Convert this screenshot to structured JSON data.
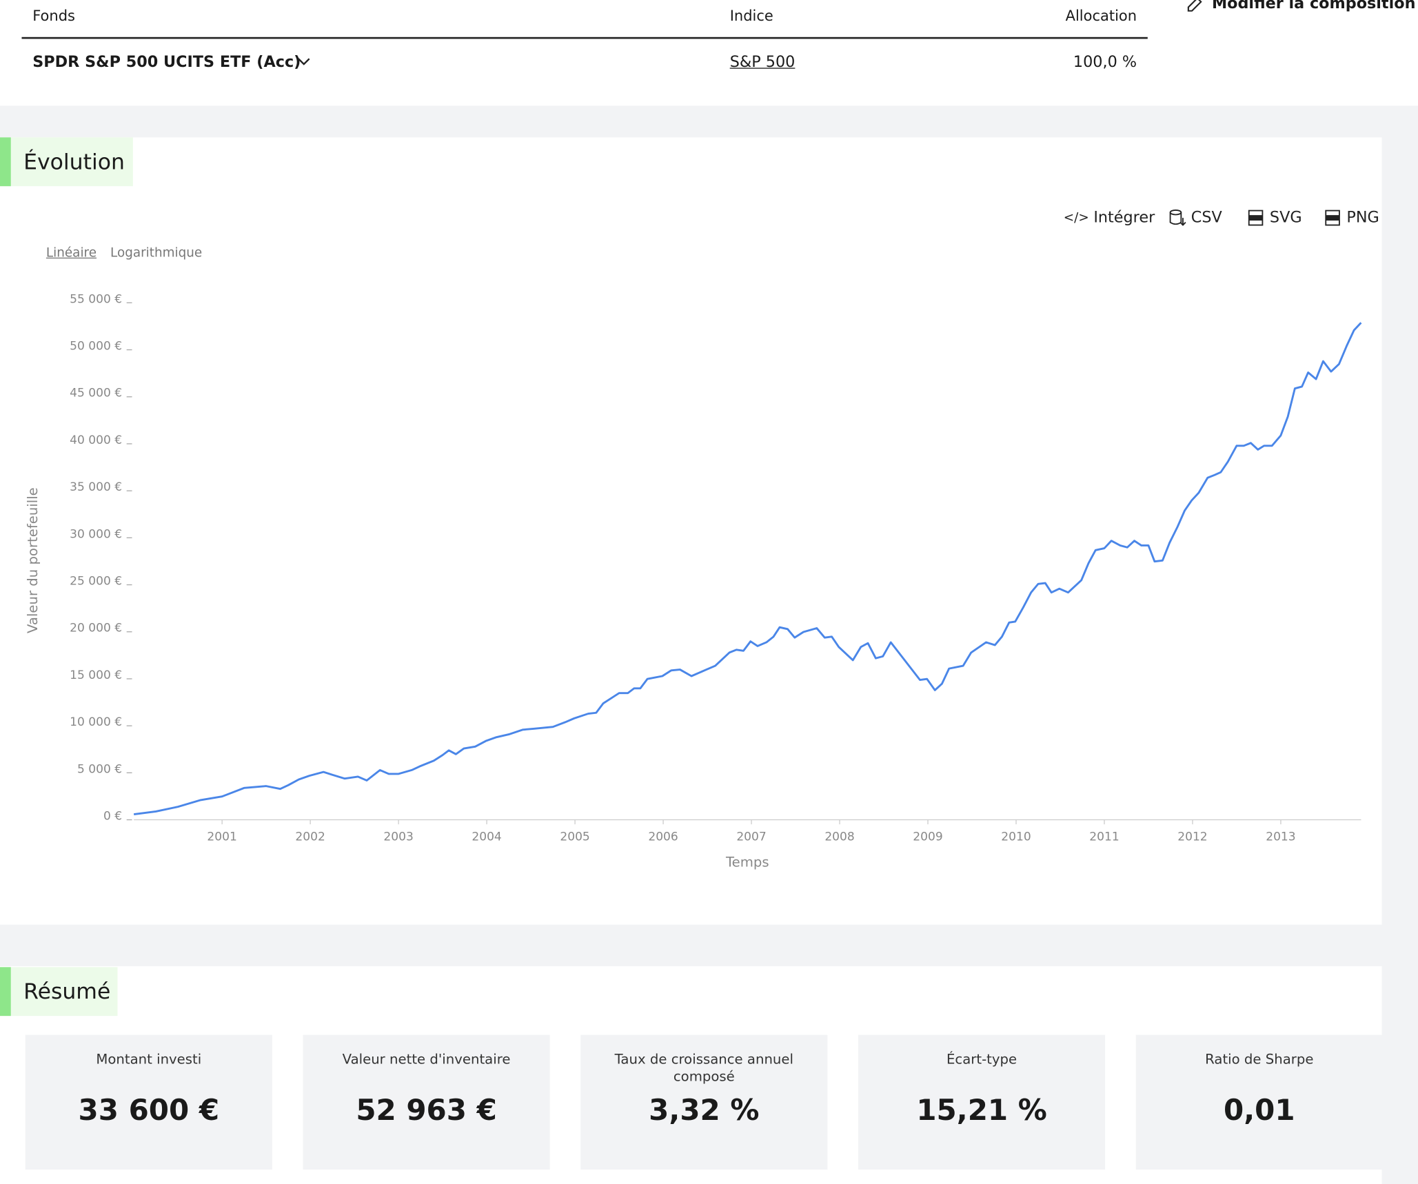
{
  "table": {
    "headers": [
      "Fonds",
      "Indice",
      "Allocation"
    ],
    "rows": [
      [
        "SPDR S&P 500 UCITS ETF (Acc)",
        "S&P 500",
        "100,0 %"
      ]
    ]
  },
  "edit_button": "Modifier la composition",
  "evolution": {
    "title": "Évolution",
    "exports": [
      "Intégrer",
      "CSV",
      "SVG",
      "PNG"
    ],
    "scale_options": [
      "Linéaire",
      "Logarithmique"
    ]
  },
  "chart_data": {
    "type": "line",
    "xlabel": "Temps",
    "ylabel": "Valeur du portefeuille",
    "color": "#4a86e8",
    "log_scale": false,
    "grid": false,
    "x": [
      2000.0,
      2000.25,
      2000.5,
      2000.75,
      2001.0,
      2001.25,
      2001.5,
      2001.66,
      2001.75,
      2001.87,
      2001.99,
      2002.15,
      2002.25,
      2002.39,
      2002.54,
      2002.64,
      2002.79,
      2002.89,
      2003.0,
      2003.15,
      2003.24,
      2003.4,
      2003.5,
      2003.57,
      2003.65,
      2003.74,
      2003.87,
      2003.99,
      2004.11,
      2004.25,
      2004.41,
      2004.53,
      2004.75,
      2004.89,
      2004.99,
      2005.15,
      2005.24,
      2005.32,
      2005.5,
      2005.6,
      2005.67,
      2005.74,
      2005.82,
      2005.99,
      2006.09,
      2006.19,
      2006.32,
      2006.49,
      2006.59,
      2006.75,
      2006.83,
      2006.91,
      2006.99,
      2007.07,
      2007.17,
      2007.25,
      2007.32,
      2007.41,
      2007.49,
      2007.59,
      2007.74,
      2007.83,
      2007.91,
      2007.99,
      2008.15,
      2008.24,
      2008.32,
      2008.41,
      2008.49,
      2008.58,
      2008.91,
      2008.99,
      2009.08,
      2009.16,
      2009.24,
      2009.4,
      2009.49,
      2009.66,
      2009.76,
      2009.84,
      2009.92,
      2009.99,
      2010.08,
      2010.17,
      2010.25,
      2010.33,
      2010.4,
      2010.49,
      2010.59,
      2010.74,
      2010.82,
      2010.9,
      2011.0,
      2011.08,
      2011.18,
      2011.26,
      2011.34,
      2011.42,
      2011.5,
      2011.57,
      2011.66,
      2011.74,
      2011.83,
      2011.91,
      2011.99,
      2012.07,
      2012.17,
      2012.25,
      2012.32,
      2012.4,
      2012.5,
      2012.58,
      2012.66,
      2012.74,
      2012.81,
      2012.9,
      2013.0,
      2013.08,
      2013.16,
      2013.24,
      2013.31,
      2013.4,
      2013.48,
      2013.57,
      2013.66,
      2013.75,
      2013.83,
      2013.91
    ],
    "values": [
      200,
      500,
      1000,
      1700,
      2100,
      3000,
      3200,
      2900,
      3300,
      3900,
      4300,
      4700,
      4400,
      4000,
      4200,
      3800,
      4900,
      4500,
      4500,
      4900,
      5300,
      5900,
      6500,
      7000,
      6600,
      7200,
      7400,
      8000,
      8400,
      8700,
      9200,
      9300,
      9500,
      10000,
      10400,
      10900,
      11000,
      12000,
      13100,
      13100,
      13600,
      13600,
      14600,
      14900,
      15500,
      15600,
      14900,
      15600,
      16000,
      17400,
      17700,
      17600,
      18600,
      18100,
      18500,
      19100,
      20100,
      19900,
      19000,
      19600,
      20000,
      19000,
      19100,
      18000,
      16600,
      18000,
      18400,
      16800,
      17000,
      18500,
      14500,
      14600,
      13400,
      14100,
      15700,
      16000,
      17400,
      18500,
      18200,
      19100,
      20600,
      20700,
      22200,
      23800,
      24700,
      24800,
      23800,
      24200,
      23800,
      25100,
      26900,
      28300,
      28500,
      29300,
      28800,
      28600,
      29300,
      28800,
      28800,
      27100,
      27200,
      29100,
      30800,
      32500,
      33600,
      34400,
      36000,
      36300,
      36600,
      37700,
      39400,
      39400,
      39700,
      39000,
      39400,
      39400,
      40500,
      42500,
      45500,
      45700,
      47200,
      46500,
      48400,
      47300,
      48100,
      50100,
      51700,
      52500
    ],
    "xlim": [
      2000,
      2013.91
    ],
    "xticks": [
      2001,
      2002,
      2003,
      2004,
      2005,
      2006,
      2007,
      2008,
      2009,
      2010,
      2011,
      2012,
      2013
    ],
    "ylim": [
      0,
      55000
    ],
    "yticks": [
      {
        "value": 0,
        "label": "0 €"
      },
      {
        "value": 5000,
        "label": "5 000 €"
      },
      {
        "value": 10000,
        "label": "10 000 €"
      },
      {
        "value": 15000,
        "label": "15 000 €"
      },
      {
        "value": 20000,
        "label": "20 000 €"
      },
      {
        "value": 25000,
        "label": "25 000 €"
      },
      {
        "value": 30000,
        "label": "30 000 €"
      },
      {
        "value": 35000,
        "label": "35 000 €"
      },
      {
        "value": 40000,
        "label": "40 000 €"
      },
      {
        "value": 45000,
        "label": "45 000 €"
      },
      {
        "value": 50000,
        "label": "50 000 €"
      },
      {
        "value": 55000,
        "label": "55 000 €"
      }
    ]
  },
  "summary": {
    "title": "Résumé",
    "cards": [
      {
        "label": "Montant investi",
        "value": "33 600 €"
      },
      {
        "label": "Valeur nette d'inventaire",
        "value": "52 963 €"
      },
      {
        "label": "Taux de croissance annuel composé",
        "value": "3,32 %"
      },
      {
        "label": "Écart-type",
        "value": "15,21 %"
      },
      {
        "label": "Ratio de Sharpe",
        "value": "0,01"
      }
    ]
  }
}
